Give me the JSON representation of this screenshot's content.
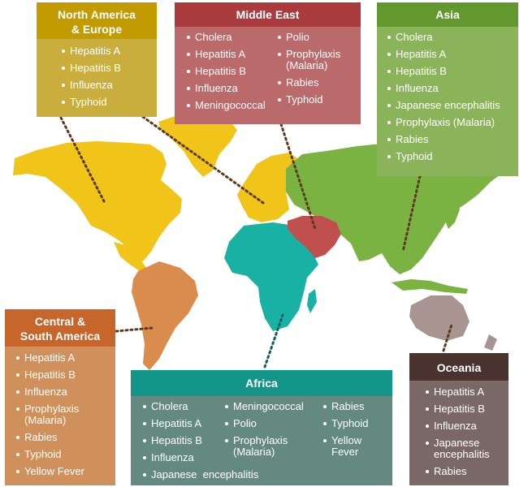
{
  "colors": {
    "north_america_europe": "#f0c419",
    "middle_east": "#c0504d",
    "asia": "#7bb342",
    "central_south_america": "#d98c4e",
    "africa": "#1ab1a5",
    "oceania": "#a89490",
    "other_land": "#dddddd"
  },
  "regions": {
    "north_america_europe": {
      "title_line1": "North America",
      "title_line2": "& Europe",
      "items": [
        "Hepatitis A",
        "Hepatitis B",
        "Influenza",
        "Typhoid"
      ]
    },
    "middle_east": {
      "title": "Middle East",
      "col1": [
        "Cholera",
        "Hepatitis A",
        "Hepatitis B",
        "Influenza",
        "Meningococcal"
      ],
      "col2_polio": "Polio",
      "col2_prophylaxis_line1": "Prophylaxis",
      "col2_prophylaxis_line2": "(Malaria)",
      "col2_rest": [
        "Rabies",
        "Typhoid"
      ]
    },
    "asia": {
      "title": "Asia",
      "items": [
        "Cholera",
        "Hepatitis A",
        "Hepatitis B",
        "Influenza",
        "Japanese encephalitis",
        "Prophylaxis (Malaria)",
        "Rabies",
        "Typhoid"
      ]
    },
    "central_south_america": {
      "title_line1": "Central &",
      "title_line2": "South America",
      "items_top": [
        "Hepatitis A",
        "Hepatitis B",
        "Influenza"
      ],
      "prophylaxis_line1": "Prophylaxis",
      "prophylaxis_line2": "(Malaria)",
      "items_bottom": [
        "Rabies",
        "Typhoid",
        "Yellow Fever"
      ]
    },
    "africa": {
      "title": "Africa",
      "col1": [
        "Cholera",
        "Hepatitis A",
        "Hepatitis B",
        "Influenza",
        "Japanese  encephalitis"
      ],
      "col2_top": [
        "Meningococcal",
        "Polio"
      ],
      "col2_prophylaxis_line1": "Prophylaxis",
      "col2_prophylaxis_line2": "(Malaria)",
      "col3_top": [
        "Rabies",
        "Typhoid"
      ],
      "col3_yellow_line1": "Yellow",
      "col3_yellow_line2": "Fever"
    },
    "oceania": {
      "title": "Oceania",
      "items_top": [
        "Hepatitis A",
        "Hepatitis B",
        "Influenza"
      ],
      "japanese_line1": "Japanese",
      "japanese_line2": "encephalitis",
      "items_bottom": [
        "Rabies"
      ]
    }
  }
}
